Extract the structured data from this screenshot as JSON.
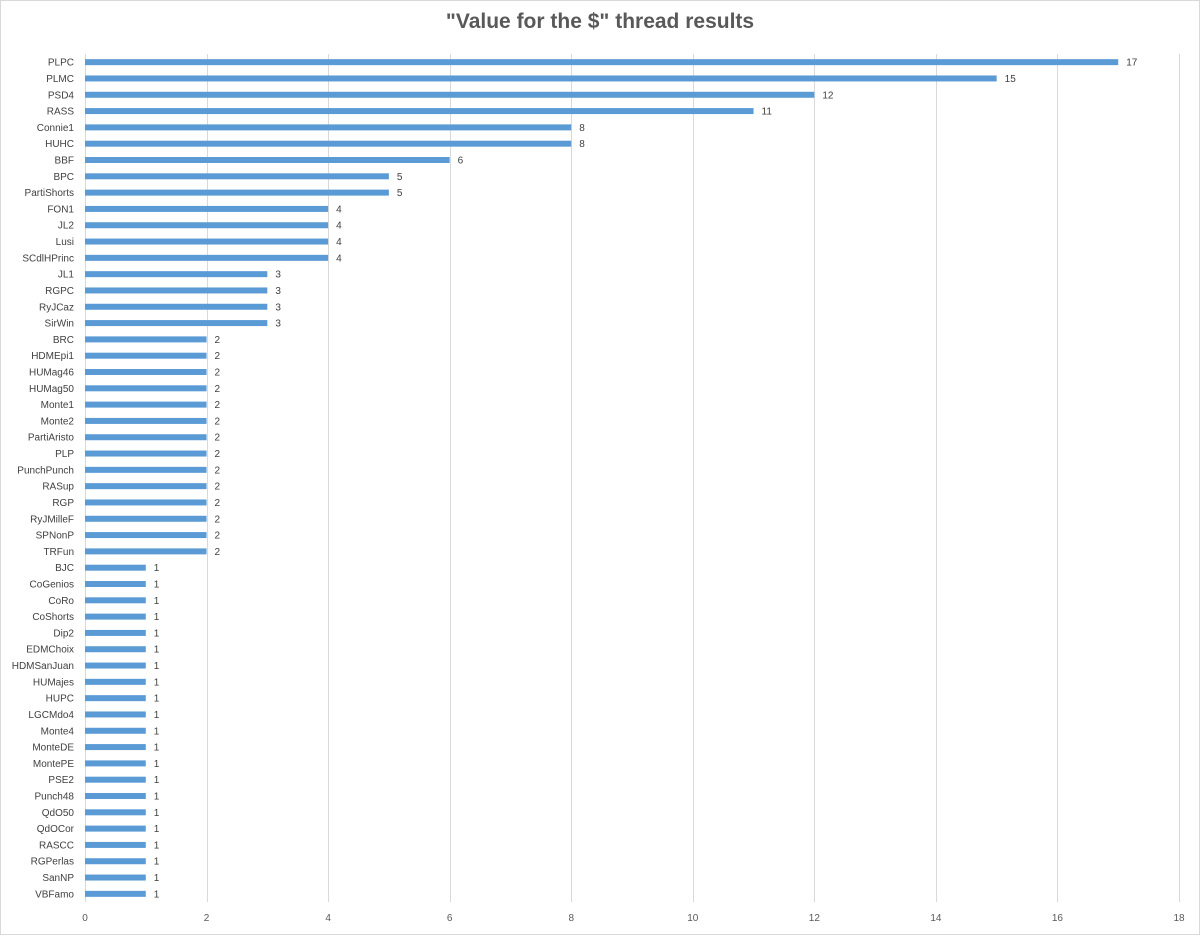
{
  "chart_data": {
    "type": "bar",
    "orientation": "horizontal",
    "title": "\"Value for the $\" thread results",
    "xlabel": "",
    "ylabel": "",
    "xlim": [
      0,
      18
    ],
    "x_ticks": [
      0,
      2,
      4,
      6,
      8,
      10,
      12,
      14,
      16,
      18
    ],
    "grid": true,
    "legend": "none",
    "bar_color": "#5b9bd5",
    "data_labels": true,
    "categories": [
      "PLPC",
      "PLMC",
      "PSD4",
      "RASS",
      "Connie1",
      "HUHC",
      "BBF",
      "BPC",
      "PartiShorts",
      "FON1",
      "JL2",
      "Lusi",
      "SCdlHPrinc",
      "JL1",
      "RGPC",
      "RyJCaz",
      "SirWin",
      "BRC",
      "HDMEpi1",
      "HUMag46",
      "HUMag50",
      "Monte1",
      "Monte2",
      "PartiAristo",
      "PLP",
      "PunchPunch",
      "RASup",
      "RGP",
      "RyJMilleF",
      "SPNonP",
      "TRFun",
      "BJC",
      "CoGenios",
      "CoRo",
      "CoShorts",
      "Dip2",
      "EDMChoix",
      "HDMSanJuan",
      "HUMajes",
      "HUPC",
      "LGCMdo4",
      "Monte4",
      "MonteDE",
      "MontePE",
      "PSE2",
      "Punch48",
      "QdO50",
      "QdOCor",
      "RASCC",
      "RGPerlas",
      "SanNP",
      "VBFamo"
    ],
    "values": [
      17,
      15,
      12,
      11,
      8,
      8,
      6,
      5,
      5,
      4,
      4,
      4,
      4,
      3,
      3,
      3,
      3,
      2,
      2,
      2,
      2,
      2,
      2,
      2,
      2,
      2,
      2,
      2,
      2,
      2,
      2,
      1,
      1,
      1,
      1,
      1,
      1,
      1,
      1,
      1,
      1,
      1,
      1,
      1,
      1,
      1,
      1,
      1,
      1,
      1,
      1,
      1
    ]
  }
}
